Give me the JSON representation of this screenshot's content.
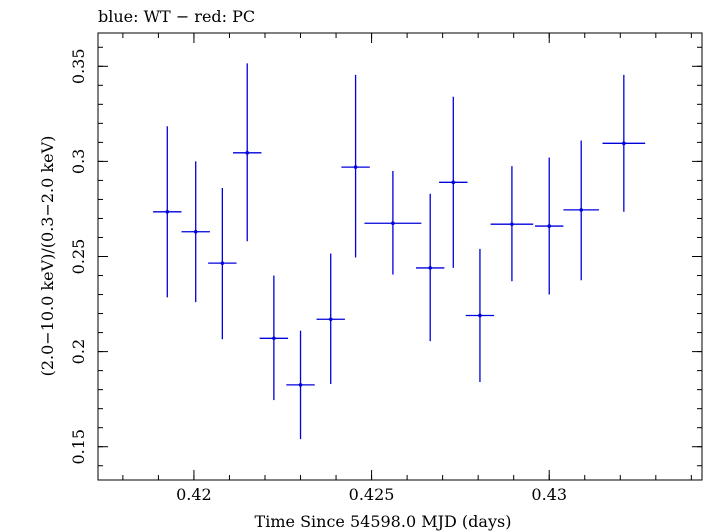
{
  "chart_data": {
    "type": "scatter",
    "title": "blue: WT − red: PC",
    "xlabel": "Time Since 54598.0 MJD (days)",
    "ylabel": "(2.0−10.0 keV)/(0.3−2.0 keV)",
    "xlim": [
      0.4173,
      0.4343
    ],
    "ylim": [
      0.1325,
      0.3675
    ],
    "xticks": [
      0.42,
      0.425,
      0.43
    ],
    "xtick_labels": [
      "0.42",
      "0.425",
      "0.43"
    ],
    "yticks": [
      0.15,
      0.2,
      0.25,
      0.3,
      0.35
    ],
    "ytick_labels": [
      "0.15",
      "0.2",
      "0.25",
      "0.3",
      "0.35"
    ],
    "series": [
      {
        "color": "#0000dd",
        "points": [
          {
            "x": 0.41925,
            "y": 0.2735,
            "xerr": 0.0004,
            "ylo": 0.2285,
            "yhi": 0.3185
          },
          {
            "x": 0.42005,
            "y": 0.263,
            "xerr": 0.0004,
            "ylo": 0.226,
            "yhi": 0.3
          },
          {
            "x": 0.4208,
            "y": 0.2465,
            "xerr": 0.0004,
            "ylo": 0.2065,
            "yhi": 0.286
          },
          {
            "x": 0.4215,
            "y": 0.3045,
            "xerr": 0.0004,
            "ylo": 0.258,
            "yhi": 0.3515
          },
          {
            "x": 0.42225,
            "y": 0.207,
            "xerr": 0.0004,
            "ylo": 0.1745,
            "yhi": 0.24
          },
          {
            "x": 0.423,
            "y": 0.1825,
            "xerr": 0.0004,
            "ylo": 0.154,
            "yhi": 0.211
          },
          {
            "x": 0.42385,
            "y": 0.217,
            "xerr": 0.0004,
            "ylo": 0.183,
            "yhi": 0.2515
          },
          {
            "x": 0.42455,
            "y": 0.297,
            "xerr": 0.0004,
            "ylo": 0.2495,
            "yhi": 0.3455
          },
          {
            "x": 0.4256,
            "y": 0.2675,
            "xerr": 0.0008,
            "ylo": 0.2405,
            "yhi": 0.295
          },
          {
            "x": 0.42665,
            "y": 0.244,
            "xerr": 0.0004,
            "ylo": 0.2055,
            "yhi": 0.283
          },
          {
            "x": 0.4273,
            "y": 0.289,
            "xerr": 0.0004,
            "ylo": 0.244,
            "yhi": 0.334
          },
          {
            "x": 0.42805,
            "y": 0.219,
            "xerr": 0.0004,
            "ylo": 0.184,
            "yhi": 0.254
          },
          {
            "x": 0.42895,
            "y": 0.267,
            "xerr": 0.0006,
            "ylo": 0.237,
            "yhi": 0.2975
          },
          {
            "x": 0.43,
            "y": 0.266,
            "xerr": 0.0004,
            "ylo": 0.23,
            "yhi": 0.302
          },
          {
            "x": 0.4309,
            "y": 0.2745,
            "xerr": 0.0005,
            "ylo": 0.2375,
            "yhi": 0.311
          },
          {
            "x": 0.4321,
            "y": 0.3095,
            "xerr": 0.0006,
            "ylo": 0.2735,
            "yhi": 0.3455
          }
        ]
      }
    ],
    "grid": false,
    "legend": "none"
  }
}
